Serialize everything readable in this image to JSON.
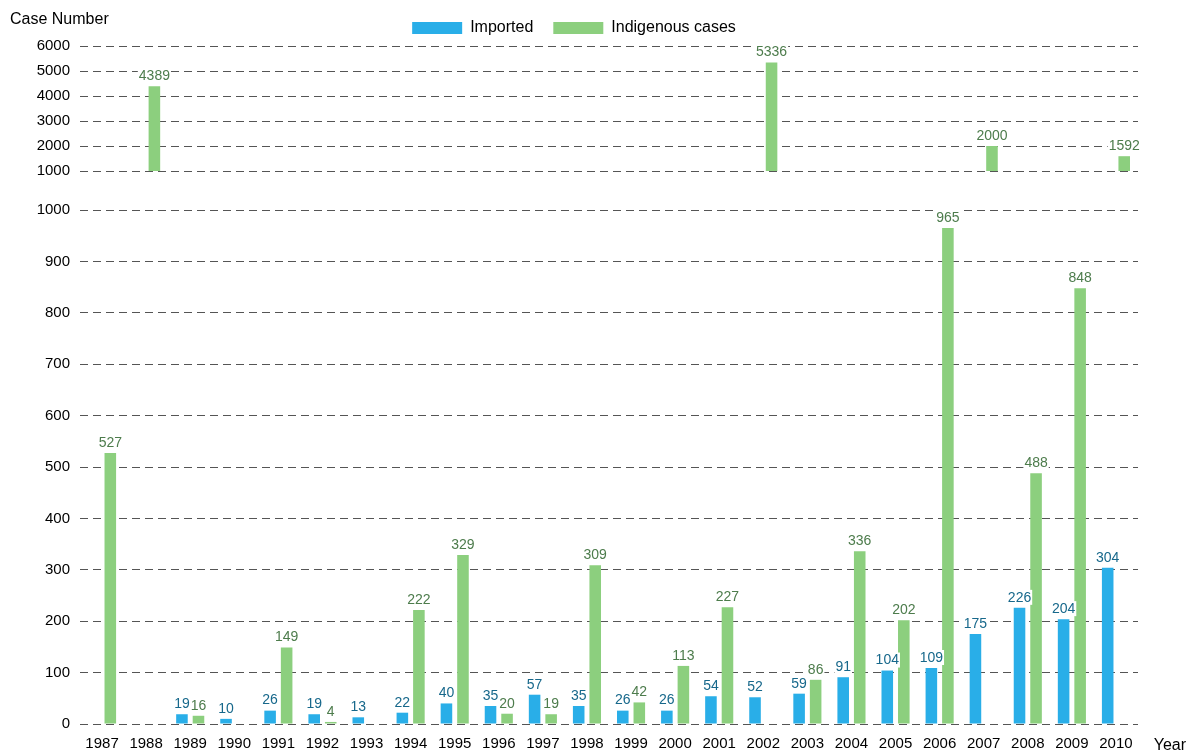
{
  "chart_data": [
    {
      "type": "bar",
      "ylabel": "Case Number",
      "categories": [
        "1987",
        "1988",
        "1989",
        "1990",
        "1991",
        "1992",
        "1993",
        "1994",
        "1995",
        "1996",
        "1997",
        "1998",
        "1999",
        "2000",
        "2001",
        "2002",
        "2003",
        "2004",
        "2005",
        "2006",
        "2007",
        "2008",
        "2009",
        "2010"
      ],
      "series": [
        {
          "name": "Imported",
          "color": "#29aee8",
          "values": [
            null,
            null,
            null,
            null,
            null,
            null,
            null,
            null,
            null,
            null,
            null,
            null,
            null,
            null,
            null,
            null,
            null,
            null,
            null,
            null,
            null,
            null,
            null,
            null
          ]
        },
        {
          "name": "Indigenous cases",
          "color": "#8ccf7e",
          "values": [
            null,
            4389,
            null,
            null,
            null,
            null,
            null,
            null,
            null,
            null,
            null,
            null,
            null,
            null,
            null,
            5336,
            null,
            null,
            null,
            null,
            2000,
            null,
            null,
            1592
          ]
        }
      ],
      "ylim": [
        1000,
        6000
      ],
      "yticks": [
        1000,
        2000,
        3000,
        4000,
        5000,
        6000
      ],
      "grid": "y",
      "legend": "top",
      "data_labels": true,
      "tick_labels": "y"
    },
    {
      "type": "bar",
      "xlabel": "Year",
      "categories": [
        "1987",
        "1988",
        "1989",
        "1990",
        "1991",
        "1992",
        "1993",
        "1994",
        "1995",
        "1996",
        "1997",
        "1998",
        "1999",
        "2000",
        "2001",
        "2002",
        "2003",
        "2004",
        "2005",
        "2006",
        "2007",
        "2008",
        "2009",
        "2010"
      ],
      "series": [
        {
          "color": "#29aee8",
          "values": [
            null,
            null,
            19,
            10,
            26,
            19,
            13,
            22,
            40,
            35,
            57,
            35,
            26,
            26,
            54,
            52,
            59,
            91,
            104,
            109,
            175,
            226,
            204,
            304
          ]
        },
        {
          "color": "#8ccf7e",
          "values": [
            527,
            null,
            16,
            null,
            149,
            4,
            null,
            222,
            329,
            20,
            19,
            309,
            42,
            113,
            227,
            null,
            86,
            336,
            202,
            965,
            null,
            488,
            848,
            null
          ]
        }
      ],
      "ylim": [
        0,
        1000
      ],
      "yticks": [
        0,
        100,
        200,
        300,
        400,
        500,
        600,
        700,
        800,
        900,
        1000
      ],
      "grid": "y",
      "data_labels": true
    }
  ]
}
